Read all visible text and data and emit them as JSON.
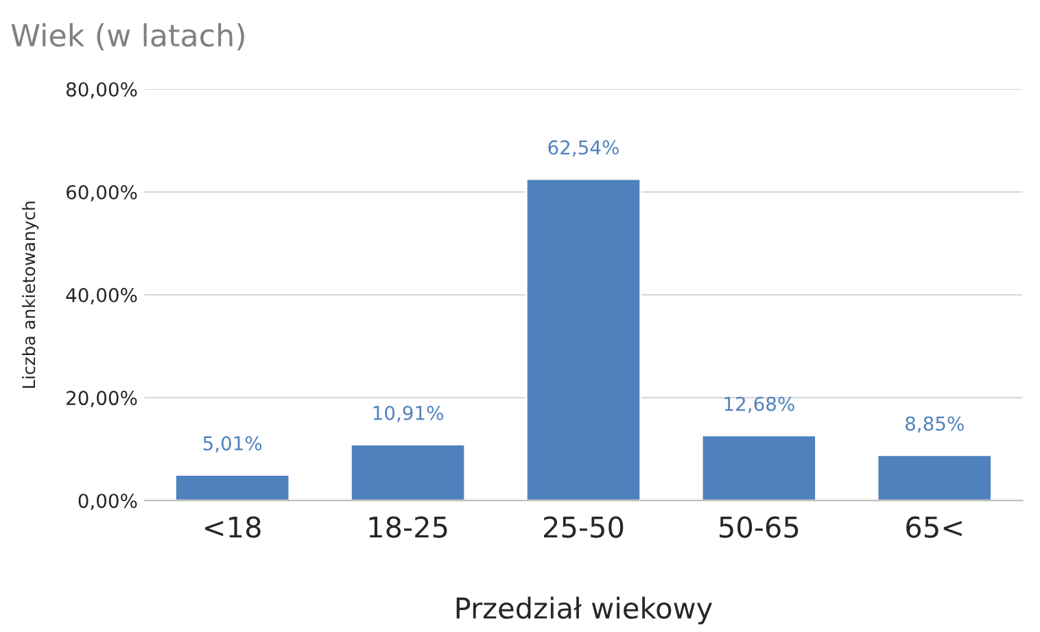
{
  "chart_data": {
    "type": "bar",
    "title": "Wiek (w latach)",
    "xlabel": "Przedział wiekowy",
    "ylabel": "Liczba ankietowanych",
    "categories": [
      "<18",
      "18-25",
      "25-50",
      "50-65",
      "65<"
    ],
    "values": [
      5.01,
      10.91,
      62.54,
      12.68,
      8.85
    ],
    "value_labels": [
      "5,01%",
      "10,91%",
      "62,54%",
      "12,68%",
      "8,85%"
    ],
    "color": "#4f81bd",
    "ylim": [
      0,
      80
    ],
    "yticks": [
      {
        "value": 0,
        "label": "0,00%"
      },
      {
        "value": 20,
        "label": "20,00%"
      },
      {
        "value": 40,
        "label": "40,00%"
      },
      {
        "value": 60,
        "label": "60,00%"
      },
      {
        "value": 80,
        "label": "80,00%"
      }
    ],
    "grid": "y"
  }
}
